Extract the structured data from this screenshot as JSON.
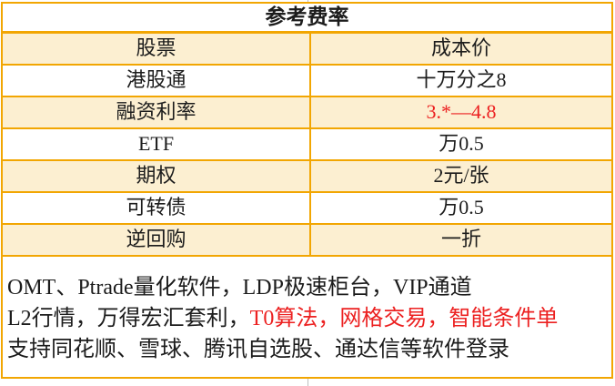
{
  "colors": {
    "border_gold": "#f2a602",
    "row_cream": "#fcefd1",
    "highlight_red": "#ec2121",
    "text_black": "#1c1c1c",
    "gridline_gray": "#bfbfbf"
  },
  "table": {
    "title": "参考费率",
    "rows": [
      {
        "item": "股票",
        "value": "成本价"
      },
      {
        "item": "港股通",
        "value": "十万分之8"
      },
      {
        "item": "融资利率",
        "value": "3.*—4.8"
      },
      {
        "item": "ETF",
        "value": "万0.5"
      },
      {
        "item": "期权",
        "value": "2元/张"
      },
      {
        "item": "可转债",
        "value": "万0.5"
      },
      {
        "item": "逆回购",
        "value": "一折"
      }
    ]
  },
  "notes": {
    "line1": "OMT、Ptrade量化软件，LDP极速柜台，VIP通道",
    "line2_black": "L2行情，万得宏汇套利，",
    "line2_red": "T0算法，网格交易，智能条件单",
    "line3": "支持同花顺、雪球、腾讯自选股、通达信等软件登录"
  }
}
